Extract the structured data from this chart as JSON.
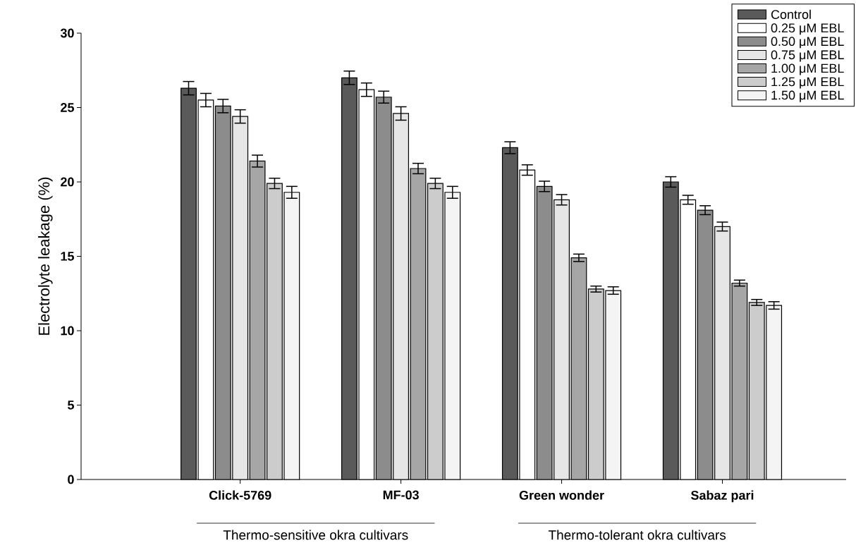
{
  "chart_data": {
    "type": "bar",
    "ylabel": "Electrolyte leakage (%)",
    "categories": [
      "Click-5769",
      "MF-03",
      "Green wonder",
      "Sabaz pari"
    ],
    "series": [
      {
        "name": "Control",
        "color": "#5a5a5a",
        "values": [
          26.3,
          27.0,
          22.3,
          20.0
        ],
        "errors": [
          0.45,
          0.45,
          0.4,
          0.35
        ]
      },
      {
        "name": "0.25 μM EBL",
        "color": "#ffffff",
        "values": [
          25.5,
          26.2,
          20.8,
          18.8
        ],
        "errors": [
          0.45,
          0.45,
          0.35,
          0.3
        ]
      },
      {
        "name": "0.50 μM EBL",
        "color": "#8c8c8c",
        "values": [
          25.1,
          25.7,
          19.7,
          18.1
        ],
        "errors": [
          0.45,
          0.4,
          0.35,
          0.3
        ]
      },
      {
        "name": "0.75 μM EBL",
        "color": "#e6e6e6",
        "values": [
          24.4,
          24.6,
          18.8,
          17.0
        ],
        "errors": [
          0.45,
          0.45,
          0.35,
          0.3
        ]
      },
      {
        "name": "1.00 μM EBL",
        "color": "#a6a6a6",
        "values": [
          21.4,
          20.9,
          14.9,
          13.2
        ],
        "errors": [
          0.4,
          0.35,
          0.25,
          0.2
        ]
      },
      {
        "name": "1.25 μM EBL",
        "color": "#cccccc",
        "values": [
          19.9,
          19.9,
          12.8,
          11.9
        ],
        "errors": [
          0.35,
          0.35,
          0.2,
          0.2
        ]
      },
      {
        "name": "1.50 μM EBL",
        "color": "#f4f4f4",
        "values": [
          19.3,
          19.3,
          12.7,
          11.7
        ],
        "errors": [
          0.4,
          0.4,
          0.25,
          0.25
        ]
      }
    ],
    "ylim": [
      0,
      30
    ],
    "yticks": [
      0,
      5,
      10,
      15,
      20,
      25,
      30
    ],
    "grid": false,
    "legend": "top right",
    "annotations": [
      "Thermo-sensitive okra cultivars",
      "Thermo-tolerant okra cultivars"
    ]
  }
}
